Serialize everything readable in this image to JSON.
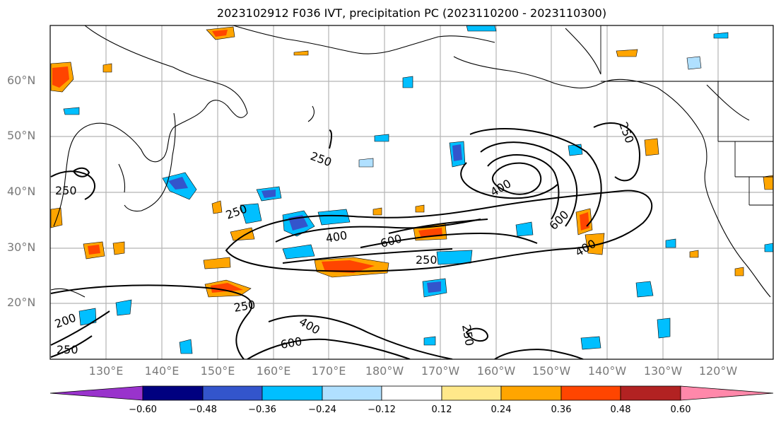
{
  "title": "2023102912 F036 IVT, precipitation PC (2023110200 - 2023110300)",
  "latitude_labels": [
    "60°N",
    "50°N",
    "40°N",
    "30°N",
    "20°N"
  ],
  "longitude_labels": [
    "130°E",
    "140°E",
    "150°E",
    "160°E",
    "170°E",
    "180°W",
    "170°W",
    "160°W",
    "150°W",
    "140°W",
    "130°W",
    "120°W"
  ],
  "contour_labels": [
    "250",
    "250",
    "400",
    "600",
    "250",
    "400",
    "600",
    "400",
    "250",
    "250",
    "400",
    "600",
    "250",
    "250",
    "200",
    "250"
  ],
  "colorbar": {
    "tick_labels": [
      "−0.60",
      "−0.48",
      "−0.36",
      "−0.24",
      "−0.12",
      "0.12",
      "0.24",
      "0.36",
      "0.48",
      "0.60"
    ],
    "colors": [
      "#9933cc",
      "#000080",
      "#3355cc",
      "#00bfff",
      "#b0e0ff",
      "#ffffff",
      "#ffe88a",
      "#ffa500",
      "#ff4500",
      "#b22222",
      "#ff88aa"
    ]
  }
}
